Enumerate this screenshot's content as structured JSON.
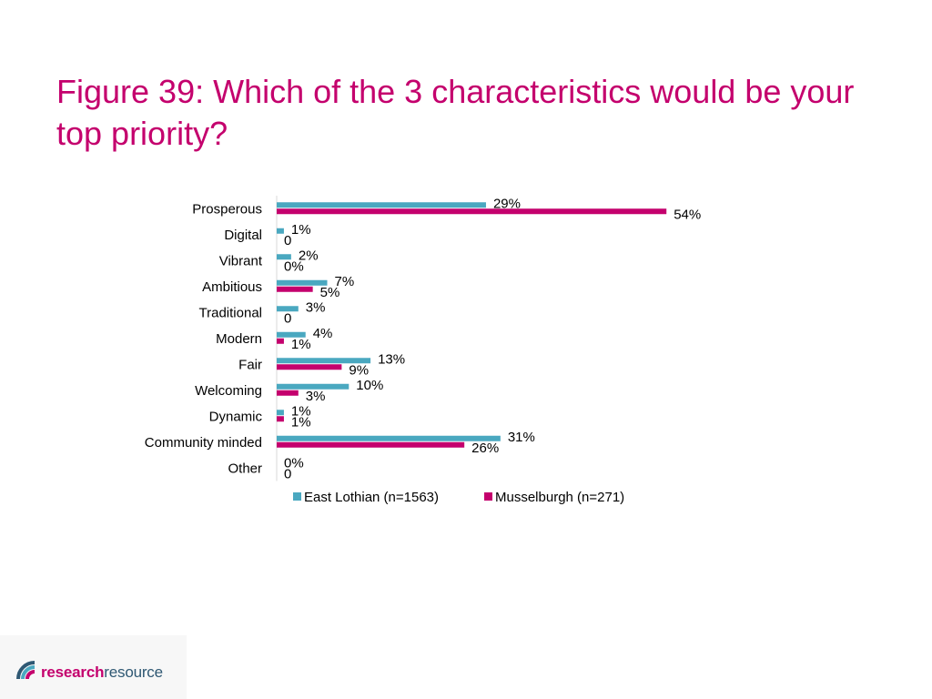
{
  "title": "Figure 39: Which of the 3 characteristics would be your top priority?",
  "logo": {
    "part1": "research",
    "part2": "resource"
  },
  "colors": {
    "title": "#c4006d",
    "east_lothian": "#4aa8c0",
    "musselburgh": "#c4006d"
  },
  "chart_data": {
    "type": "bar",
    "orientation": "horizontal",
    "categories": [
      "Prosperous",
      "Digital",
      "Vibrant",
      "Ambitious",
      "Traditional",
      "Modern",
      "Fair",
      "Welcoming",
      "Dynamic",
      "Community minded",
      "Other"
    ],
    "series": [
      {
        "name": "East Lothian (n=1563)",
        "color": "#4aa8c0",
        "values": [
          29,
          1,
          2,
          7,
          3,
          4,
          13,
          10,
          1,
          31,
          0
        ],
        "labels": [
          "29%",
          "1%",
          "2%",
          "7%",
          "3%",
          "4%",
          "13%",
          "10%",
          "1%",
          "31%",
          "0%"
        ]
      },
      {
        "name": "Musselburgh (n=271)",
        "color": "#c4006d",
        "values": [
          54,
          0,
          0,
          5,
          0,
          1,
          9,
          3,
          1,
          26,
          0
        ],
        "labels": [
          "54%",
          "0",
          "0%",
          "5%",
          "0",
          "1%",
          "9%",
          "3%",
          "1%",
          "26%",
          "0"
        ]
      }
    ],
    "xlim": [
      0,
      60
    ],
    "legend": "bottom",
    "grid": false
  }
}
